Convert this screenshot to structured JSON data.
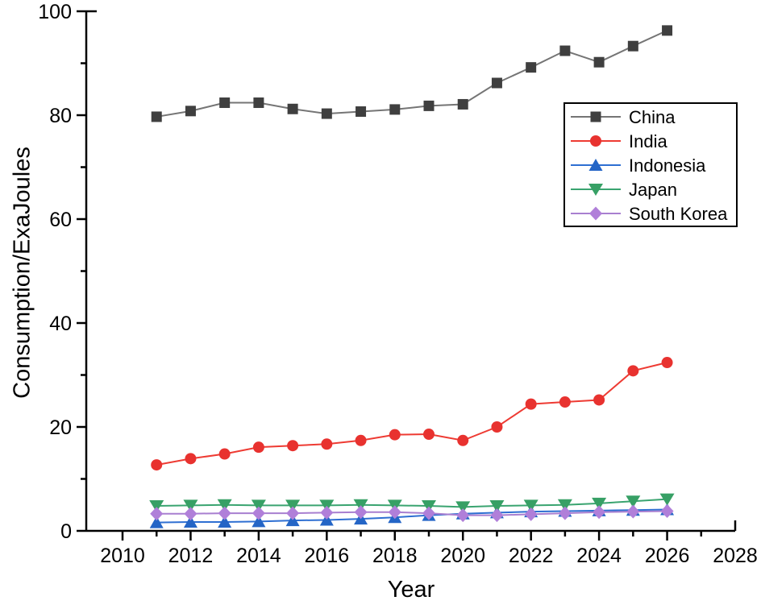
{
  "figure": {
    "background": "#ffffff",
    "axis_color": "#000000"
  },
  "chart_data": {
    "type": "line",
    "title": "",
    "xlabel": "Year",
    "ylabel": "Consumption/ExaJoules",
    "xlim": [
      2010,
      2028
    ],
    "ylim": [
      0,
      100
    ],
    "x_major_ticks": [
      2010,
      2012,
      2014,
      2016,
      2018,
      2020,
      2022,
      2024,
      2026,
      2028
    ],
    "x_minor_ticks": [
      2011,
      2013,
      2015,
      2017,
      2019,
      2021,
      2023,
      2025,
      2027
    ],
    "y_major_ticks": [
      0,
      20,
      40,
      60,
      80,
      100
    ],
    "y_minor_ticks": [
      10,
      30,
      50,
      70,
      90
    ],
    "grid": false,
    "legend_position": "upper-right-inside",
    "x": [
      2011,
      2012,
      2013,
      2014,
      2015,
      2016,
      2017,
      2018,
      2019,
      2020,
      2021,
      2022,
      2023,
      2024,
      2025,
      2026
    ],
    "series": [
      {
        "name": "China",
        "marker": "square",
        "marker_color": "#3f3f3f",
        "line_color": "#757575",
        "values": [
          79.7,
          80.8,
          82.4,
          82.4,
          81.2,
          80.3,
          80.7,
          81.1,
          81.8,
          82.1,
          86.2,
          89.2,
          92.4,
          90.2,
          93.3,
          96.3
        ]
      },
      {
        "name": "India",
        "marker": "circle",
        "marker_color": "#e8322f",
        "line_color": "#ee3b33",
        "values": [
          12.7,
          13.9,
          14.8,
          16.1,
          16.4,
          16.7,
          17.4,
          18.5,
          18.6,
          17.4,
          20.0,
          24.4,
          24.8,
          25.2,
          30.8,
          32.4
        ]
      },
      {
        "name": "Indonesia",
        "marker": "triangle-up",
        "marker_color": "#2465c6",
        "line_color": "#2e6fd2",
        "values": [
          1.6,
          1.7,
          1.7,
          1.8,
          2.0,
          2.1,
          2.3,
          2.6,
          3.0,
          3.3,
          3.5,
          3.7,
          3.8,
          3.9,
          4.0,
          4.1
        ]
      },
      {
        "name": "Japan",
        "marker": "triangle-down",
        "marker_color": "#37a065",
        "line_color": "#3aa470",
        "values": [
          4.8,
          4.9,
          5.0,
          4.9,
          4.9,
          4.9,
          5.0,
          4.9,
          4.8,
          4.6,
          4.8,
          4.9,
          5.0,
          5.3,
          5.7,
          6.1
        ]
      },
      {
        "name": "South Korea",
        "marker": "diamond",
        "marker_color": "#b07fd9",
        "line_color": "#a87fd0",
        "values": [
          3.3,
          3.3,
          3.4,
          3.4,
          3.4,
          3.5,
          3.6,
          3.6,
          3.4,
          3.0,
          3.0,
          3.2,
          3.4,
          3.6,
          3.7,
          3.8
        ]
      }
    ]
  }
}
